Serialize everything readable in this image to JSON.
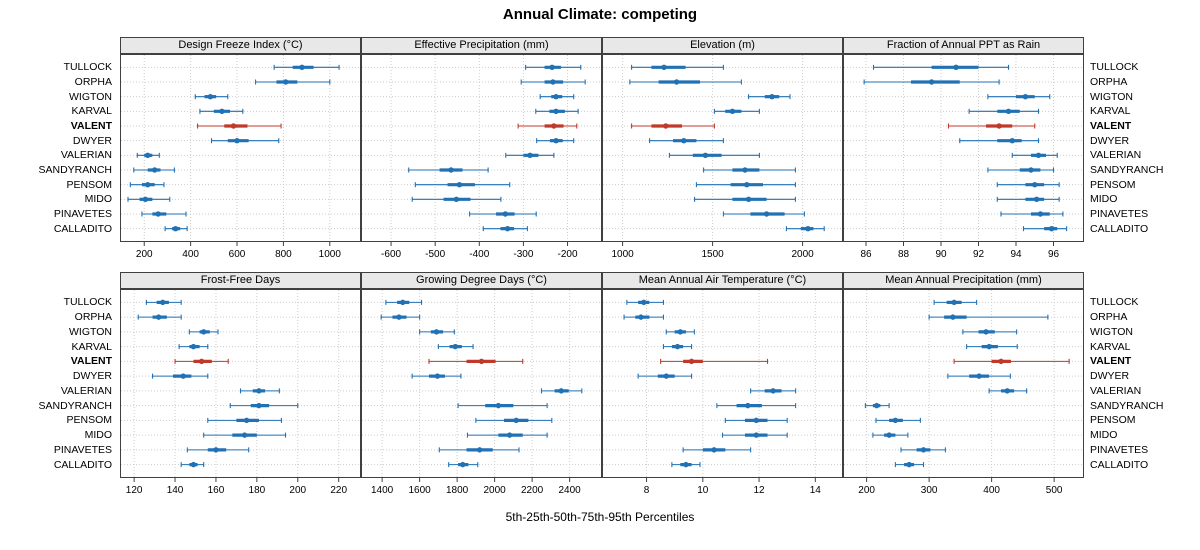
{
  "title": "Annual Climate: competing",
  "caption": "5th-25th-50th-75th-95th Percentiles",
  "highlight_station": "VALENT",
  "colors": {
    "normal": "#2171b5",
    "highlight": "#c0392b",
    "strip_bg": "#e8e8e8",
    "grid": "#cdcdcd",
    "border": "#404040"
  },
  "stations": [
    "TULLOCK",
    "ORPHA",
    "WIGTON",
    "KARVAL",
    "VALENT",
    "DWYER",
    "VALERIAN",
    "SANDYRANCH",
    "PENSOM",
    "MIDO",
    "PINAVETES",
    "CALLADITO"
  ],
  "chart_data": {
    "type": "table",
    "subtype": "percentile-range-dotplot",
    "percentile_labels": [
      "5th",
      "25th",
      "50th",
      "75th",
      "95th"
    ],
    "grid": "dotted",
    "panels": [
      {
        "title": "Design Freeze Index (°C)",
        "row": 0,
        "col": 0,
        "xlim": [
          130,
          1100
        ],
        "ticks": [
          200,
          400,
          600,
          800,
          1000
        ],
        "values": [
          [
            760,
            840,
            880,
            930,
            1040
          ],
          [
            680,
            770,
            810,
            860,
            1000
          ],
          [
            420,
            460,
            485,
            510,
            560
          ],
          [
            440,
            500,
            535,
            570,
            625
          ],
          [
            430,
            545,
            585,
            645,
            790
          ],
          [
            490,
            560,
            600,
            650,
            780
          ],
          [
            170,
            200,
            215,
            235,
            265
          ],
          [
            155,
            215,
            245,
            270,
            330
          ],
          [
            140,
            190,
            215,
            245,
            285
          ],
          [
            130,
            180,
            205,
            235,
            310
          ],
          [
            190,
            235,
            260,
            295,
            380
          ],
          [
            290,
            320,
            335,
            355,
            385
          ]
        ]
      },
      {
        "title": "Effective Precipitation (mm)",
        "row": 0,
        "col": 1,
        "xlim": [
          -650,
          -140
        ],
        "ticks": [
          -600,
          -500,
          -400,
          -300,
          -200
        ],
        "values": [
          [
            -295,
            -252,
            -235,
            -215,
            -170
          ],
          [
            -305,
            -252,
            -233,
            -210,
            -160
          ],
          [
            -262,
            -237,
            -226,
            -212,
            -186
          ],
          [
            -272,
            -241,
            -226,
            -206,
            -176
          ],
          [
            -312,
            -252,
            -231,
            -209,
            -179
          ],
          [
            -270,
            -240,
            -226,
            -211,
            -186
          ],
          [
            -340,
            -300,
            -285,
            -266,
            -231
          ],
          [
            -560,
            -490,
            -464,
            -438,
            -380
          ],
          [
            -545,
            -472,
            -445,
            -410,
            -331
          ],
          [
            -552,
            -481,
            -452,
            -420,
            -351
          ],
          [
            -422,
            -362,
            -341,
            -320,
            -271
          ],
          [
            -391,
            -352,
            -336,
            -321,
            -291
          ]
        ]
      },
      {
        "title": "Elevation (m)",
        "row": 0,
        "col": 2,
        "xlim": [
          930,
          2180
        ],
        "ticks": [
          1000,
          1500,
          2000
        ],
        "values": [
          [
            1050,
            1160,
            1230,
            1350,
            1560
          ],
          [
            1040,
            1200,
            1300,
            1430,
            1660
          ],
          [
            1700,
            1790,
            1830,
            1870,
            1930
          ],
          [
            1510,
            1570,
            1610,
            1660,
            1760
          ],
          [
            1050,
            1160,
            1240,
            1330,
            1510
          ],
          [
            1150,
            1280,
            1340,
            1410,
            1560
          ],
          [
            1260,
            1390,
            1460,
            1550,
            1760
          ],
          [
            1450,
            1610,
            1680,
            1760,
            1960
          ],
          [
            1410,
            1600,
            1690,
            1780,
            1960
          ],
          [
            1400,
            1610,
            1700,
            1800,
            1960
          ],
          [
            1560,
            1710,
            1800,
            1900,
            2010
          ],
          [
            1910,
            1990,
            2030,
            2060,
            2120
          ]
        ]
      },
      {
        "title": "Fraction of Annual PPT as Rain",
        "row": 0,
        "col": 3,
        "xlim": [
          85.2,
          97.2
        ],
        "ticks": [
          86,
          88,
          90,
          92,
          94,
          96
        ],
        "values": [
          [
            86.4,
            89.5,
            90.8,
            92.0,
            93.6
          ],
          [
            85.9,
            88.4,
            89.5,
            91.0,
            93.1
          ],
          [
            92.5,
            94.0,
            94.5,
            95.0,
            95.8
          ],
          [
            91.5,
            93.0,
            93.6,
            94.2,
            95.2
          ],
          [
            90.4,
            92.4,
            93.1,
            93.8,
            95.0
          ],
          [
            91.0,
            93.0,
            93.8,
            94.3,
            95.2
          ],
          [
            93.8,
            94.8,
            95.2,
            95.6,
            96.2
          ],
          [
            92.5,
            94.2,
            94.8,
            95.3,
            96.0
          ],
          [
            93.0,
            94.5,
            95.0,
            95.5,
            96.3
          ],
          [
            93.0,
            94.5,
            95.1,
            95.5,
            96.3
          ],
          [
            93.2,
            94.8,
            95.3,
            95.8,
            96.5
          ],
          [
            94.4,
            95.5,
            95.9,
            96.2,
            96.7
          ]
        ]
      },
      {
        "title": "Frost-Free Days",
        "row": 1,
        "col": 0,
        "xlim": [
          117,
          227
        ],
        "ticks": [
          120,
          140,
          160,
          180,
          200,
          220
        ],
        "values": [
          [
            126,
            131,
            134,
            137,
            143
          ],
          [
            122,
            129,
            132,
            136,
            143
          ],
          [
            147,
            152,
            154,
            157,
            161
          ],
          [
            142,
            147,
            149,
            152,
            156
          ],
          [
            140,
            149,
            153,
            158,
            166
          ],
          [
            129,
            139,
            144,
            148,
            156
          ],
          [
            172,
            178,
            181,
            184,
            191
          ],
          [
            167,
            177,
            181,
            186,
            200
          ],
          [
            156,
            170,
            175,
            181,
            192
          ],
          [
            154,
            168,
            174,
            180,
            194
          ],
          [
            146,
            156,
            160,
            165,
            176
          ],
          [
            143,
            147,
            149,
            151,
            154
          ]
        ]
      },
      {
        "title": "Growing Degree Days (°C)",
        "row": 1,
        "col": 1,
        "xlim": [
          1330,
          2530
        ],
        "ticks": [
          1400,
          1600,
          1800,
          2000,
          2200,
          2400
        ],
        "values": [
          [
            1420,
            1480,
            1510,
            1545,
            1610
          ],
          [
            1395,
            1455,
            1490,
            1530,
            1600
          ],
          [
            1600,
            1660,
            1690,
            1725,
            1785
          ],
          [
            1700,
            1760,
            1790,
            1825,
            1885
          ],
          [
            1650,
            1850,
            1930,
            2005,
            2150
          ],
          [
            1560,
            1650,
            1695,
            1735,
            1820
          ],
          [
            2250,
            2320,
            2355,
            2395,
            2465
          ],
          [
            1805,
            1950,
            2020,
            2100,
            2280
          ],
          [
            1900,
            2050,
            2115,
            2180,
            2305
          ],
          [
            1855,
            2020,
            2080,
            2150,
            2280
          ],
          [
            1705,
            1850,
            1920,
            1990,
            2130
          ],
          [
            1755,
            1805,
            1830,
            1860,
            1910
          ]
        ]
      },
      {
        "title": "Mean Annual Air Temperature (°C)",
        "row": 1,
        "col": 2,
        "xlim": [
          6.7,
          14.7
        ],
        "ticks": [
          8,
          10,
          12,
          14
        ],
        "values": [
          [
            7.3,
            7.7,
            7.9,
            8.1,
            8.6
          ],
          [
            7.2,
            7.6,
            7.8,
            8.1,
            8.6
          ],
          [
            8.7,
            9.0,
            9.2,
            9.4,
            9.7
          ],
          [
            8.6,
            8.9,
            9.1,
            9.3,
            9.6
          ],
          [
            8.5,
            9.3,
            9.6,
            10.0,
            12.3
          ],
          [
            7.7,
            8.4,
            8.7,
            9.0,
            9.6
          ],
          [
            11.7,
            12.2,
            12.5,
            12.8,
            13.3
          ],
          [
            10.5,
            11.2,
            11.6,
            12.1,
            13.3
          ],
          [
            10.8,
            11.5,
            11.9,
            12.3,
            13.0
          ],
          [
            10.7,
            11.5,
            11.9,
            12.3,
            13.0
          ],
          [
            9.3,
            10.0,
            10.4,
            10.8,
            11.7
          ],
          [
            8.9,
            9.2,
            9.4,
            9.6,
            9.9
          ]
        ]
      },
      {
        "title": "Mean Annual Precipitation (mm)",
        "row": 1,
        "col": 3,
        "xlim": [
          175,
          535
        ],
        "ticks": [
          200,
          300,
          400,
          500
        ],
        "values": [
          [
            308,
            328,
            340,
            352,
            376
          ],
          [
            300,
            324,
            338,
            360,
            490
          ],
          [
            354,
            379,
            391,
            405,
            440
          ],
          [
            360,
            384,
            396,
            410,
            441
          ],
          [
            340,
            400,
            415,
            431,
            524
          ],
          [
            330,
            364,
            380,
            396,
            430
          ],
          [
            396,
            415,
            425,
            436,
            456
          ],
          [
            198,
            210,
            216,
            222,
            236
          ],
          [
            215,
            236,
            246,
            258,
            286
          ],
          [
            210,
            228,
            236,
            246,
            266
          ],
          [
            255,
            280,
            291,
            302,
            326
          ],
          [
            246,
            260,
            268,
            276,
            291
          ]
        ]
      }
    ]
  }
}
